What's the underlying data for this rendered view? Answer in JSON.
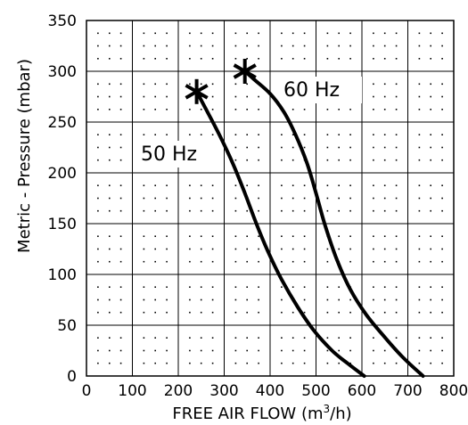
{
  "chart_data": {
    "type": "line",
    "title": "",
    "xlabel": "FREE AIR FLOW (m",
    "xlabel_sup": "3",
    "xlabel_tail": "/h)",
    "ylabel": "Metric - Pressure (mbar)",
    "xlim": [
      0,
      800
    ],
    "ylim": [
      0,
      350
    ],
    "x_ticks": [
      0,
      100,
      200,
      300,
      400,
      500,
      600,
      700,
      800
    ],
    "y_ticks": [
      0,
      50,
      100,
      150,
      200,
      250,
      300,
      350
    ],
    "grid": true,
    "grid_style": "solid major lines every 100 x 50, dotted minor pattern",
    "series": [
      {
        "name": "50 Hz",
        "marker_at_start": "asterisk",
        "points": [
          [
            240,
            280
          ],
          [
            260,
            263
          ],
          [
            290,
            237
          ],
          [
            320,
            208
          ],
          [
            345,
            180
          ],
          [
            370,
            150
          ],
          [
            395,
            123
          ],
          [
            425,
            95
          ],
          [
            460,
            68
          ],
          [
            495,
            45
          ],
          [
            535,
            25
          ],
          [
            570,
            12
          ],
          [
            605,
            0
          ]
        ]
      },
      {
        "name": "60 Hz",
        "marker_at_start": "asterisk",
        "points": [
          [
            345,
            300
          ],
          [
            365,
            292
          ],
          [
            400,
            278
          ],
          [
            430,
            260
          ],
          [
            455,
            238
          ],
          [
            480,
            210
          ],
          [
            500,
            180
          ],
          [
            520,
            148
          ],
          [
            545,
            115
          ],
          [
            575,
            85
          ],
          [
            610,
            60
          ],
          [
            650,
            38
          ],
          [
            690,
            18
          ],
          [
            733,
            0
          ]
        ]
      }
    ],
    "color": "#000000"
  }
}
